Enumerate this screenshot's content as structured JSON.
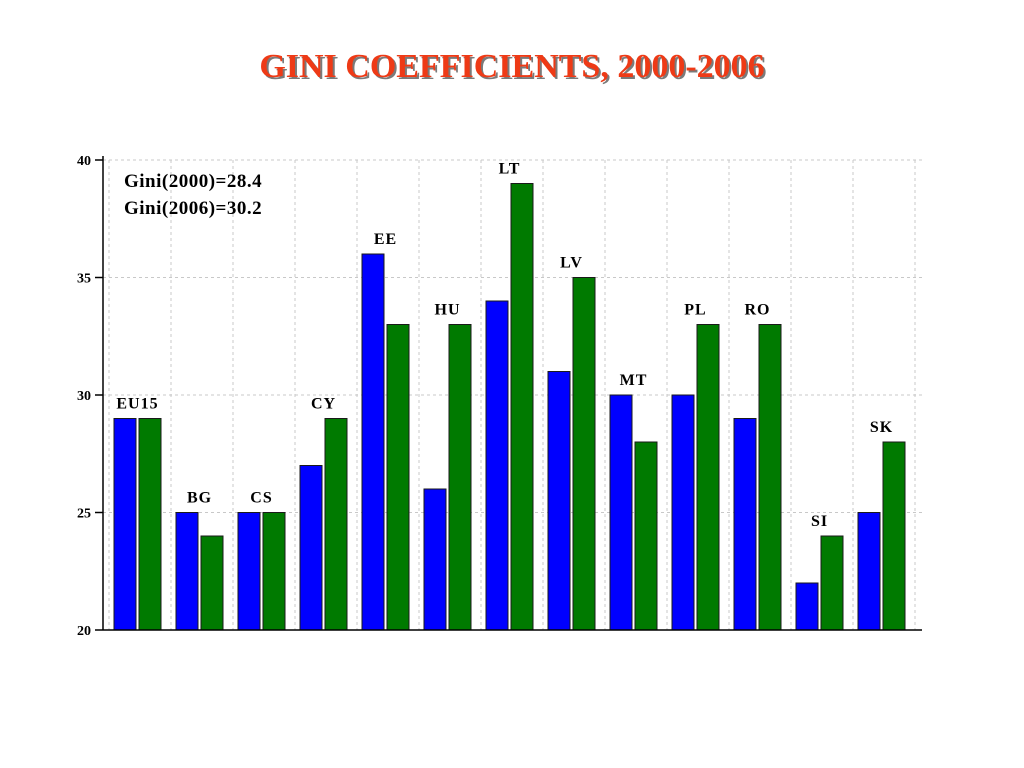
{
  "title": "GINI COEFFICIENTS, 2000-2006",
  "colors": {
    "title": "#ee3a16",
    "series_2000": "#0000ff",
    "series_2006": "#007a00",
    "grid": "#c8c8c8",
    "axis": "#000000"
  },
  "chart_data": {
    "type": "bar",
    "title": "GINI COEFFICIENTS, 2000-2006",
    "xlabel": "",
    "ylabel": "",
    "ylim": [
      20,
      40
    ],
    "yticks": [
      20,
      25,
      30,
      35,
      40
    ],
    "grid": true,
    "legend": "none",
    "categories": [
      "EU15",
      "BG",
      "CS",
      "CY",
      "EE",
      "HU",
      "LT",
      "LV",
      "MT",
      "PL",
      "RO",
      "SI",
      "SK"
    ],
    "series": [
      {
        "values": [
          29,
          25,
          25,
          27,
          36,
          26,
          34,
          31,
          30,
          30,
          29,
          22,
          25
        ]
      },
      {
        "values": [
          29,
          24,
          25,
          29,
          33,
          33,
          39,
          35,
          28,
          33,
          33,
          24,
          28
        ]
      }
    ],
    "annotations": [
      "Gini(2000)=28.4",
      "Gini(2006)=30.2"
    ]
  }
}
